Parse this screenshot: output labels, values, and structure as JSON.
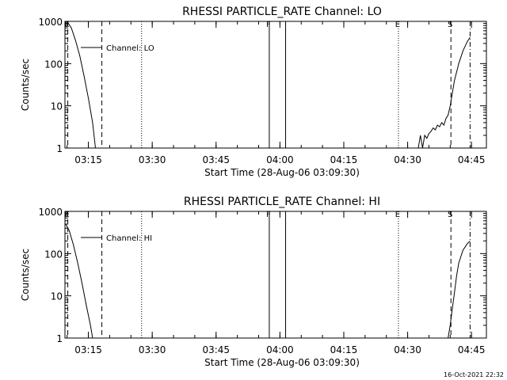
{
  "footer": {
    "timestamp": "16-Oct-2021 22:32"
  },
  "chart_data": [
    {
      "type": "line",
      "title": "RHESSI PARTICLE_RATE Channel: LO",
      "xlabel": "Start Time (28-Aug-06 03:09:30)",
      "ylabel": "Counts/sec",
      "yscale": "log",
      "ylim": [
        1,
        1000
      ],
      "xlim": [
        "03:09:30",
        "04:48:30"
      ],
      "x_ticks": [
        "03:15",
        "03:30",
        "03:45",
        "04:00",
        "04:15",
        "04:30",
        "04:45"
      ],
      "y_ticks": [
        "1",
        "10",
        "100",
        "1000"
      ],
      "legend": {
        "placement": "top-left",
        "entries": [
          "Channel: LO"
        ]
      },
      "markers": [
        {
          "label": "E",
          "time": "03:10:10",
          "style": "dashed"
        },
        {
          "label": "",
          "time": "03:18:10",
          "style": "dashed"
        },
        {
          "label": "",
          "time": "03:27:30",
          "style": "dotted"
        },
        {
          "label": "F",
          "time": "03:57:30",
          "style": "solid"
        },
        {
          "label": "",
          "time": "04:01:20",
          "style": "solid"
        },
        {
          "label": "E",
          "time": "04:27:50",
          "style": "dotted"
        },
        {
          "label": "S",
          "time": "04:40:10",
          "style": "dashed"
        },
        {
          "label": "",
          "time": "04:44:40",
          "style": "dashdot"
        }
      ],
      "series": [
        {
          "name": "Channel: LO",
          "segments": [
            {
              "x": [
                "03:10:00",
                "03:11:00",
                "03:12:00",
                "03:13:00",
                "03:14:00",
                "03:15:00",
                "03:16:00",
                "03:16:40"
              ],
              "y": [
                1000,
                700,
                350,
                150,
                50,
                15,
                4,
                1
              ]
            },
            {
              "x": [
                "04:32:30",
                "04:33:00",
                "04:33:30",
                "04:34:00",
                "04:34:30",
                "04:35:00",
                "04:35:30",
                "04:36:00",
                "04:36:30",
                "04:37:00",
                "04:37:30",
                "04:38:00",
                "04:38:30",
                "04:39:00",
                "04:39:30",
                "04:40:00",
                "04:40:30",
                "04:41:00",
                "04:42:00",
                "04:43:00",
                "04:44:00",
                "04:44:40"
              ],
              "y": [
                1,
                2,
                1,
                2,
                1.7,
                2.2,
                2.5,
                3,
                2.7,
                3.5,
                3.2,
                4,
                3.5,
                5,
                6,
                10,
                20,
                40,
                100,
                200,
                330,
                420
              ]
            }
          ]
        }
      ]
    },
    {
      "type": "line",
      "title": "RHESSI PARTICLE_RATE Channel: HI",
      "xlabel": "Start Time (28-Aug-06 03:09:30)",
      "ylabel": "Counts/sec",
      "yscale": "log",
      "ylim": [
        1,
        1000
      ],
      "xlim": [
        "03:09:30",
        "04:48:30"
      ],
      "x_ticks": [
        "03:15",
        "03:30",
        "03:45",
        "04:00",
        "04:15",
        "04:30",
        "04:45"
      ],
      "y_ticks": [
        "1",
        "10",
        "100",
        "1000"
      ],
      "legend": {
        "placement": "top-left",
        "entries": [
          "Channel: HI"
        ]
      },
      "markers": [
        {
          "label": "E",
          "time": "03:10:10",
          "style": "dashed"
        },
        {
          "label": "",
          "time": "03:18:10",
          "style": "dashed"
        },
        {
          "label": "",
          "time": "03:27:30",
          "style": "dotted"
        },
        {
          "label": "F",
          "time": "03:57:30",
          "style": "solid"
        },
        {
          "label": "",
          "time": "04:01:20",
          "style": "solid"
        },
        {
          "label": "E",
          "time": "04:27:50",
          "style": "dotted"
        },
        {
          "label": "S",
          "time": "04:40:10",
          "style": "dashed"
        },
        {
          "label": "",
          "time": "04:44:40",
          "style": "dashdot"
        }
      ],
      "series": [
        {
          "name": "Channel: HI",
          "segments": [
            {
              "x": [
                "03:09:40",
                "03:10:30",
                "03:11:30",
                "03:12:30",
                "03:13:30",
                "03:14:30",
                "03:15:30",
                "03:16:00"
              ],
              "y": [
                500,
                350,
                160,
                60,
                20,
                6,
                2,
                1
              ]
            },
            {
              "x": [
                "04:39:30",
                "04:40:00",
                "04:40:30",
                "04:41:00",
                "04:41:30",
                "04:42:00",
                "04:43:00",
                "04:44:00",
                "04:44:40"
              ],
              "y": [
                1,
                2,
                5,
                12,
                30,
                60,
                120,
                170,
                200
              ]
            }
          ]
        }
      ]
    }
  ]
}
